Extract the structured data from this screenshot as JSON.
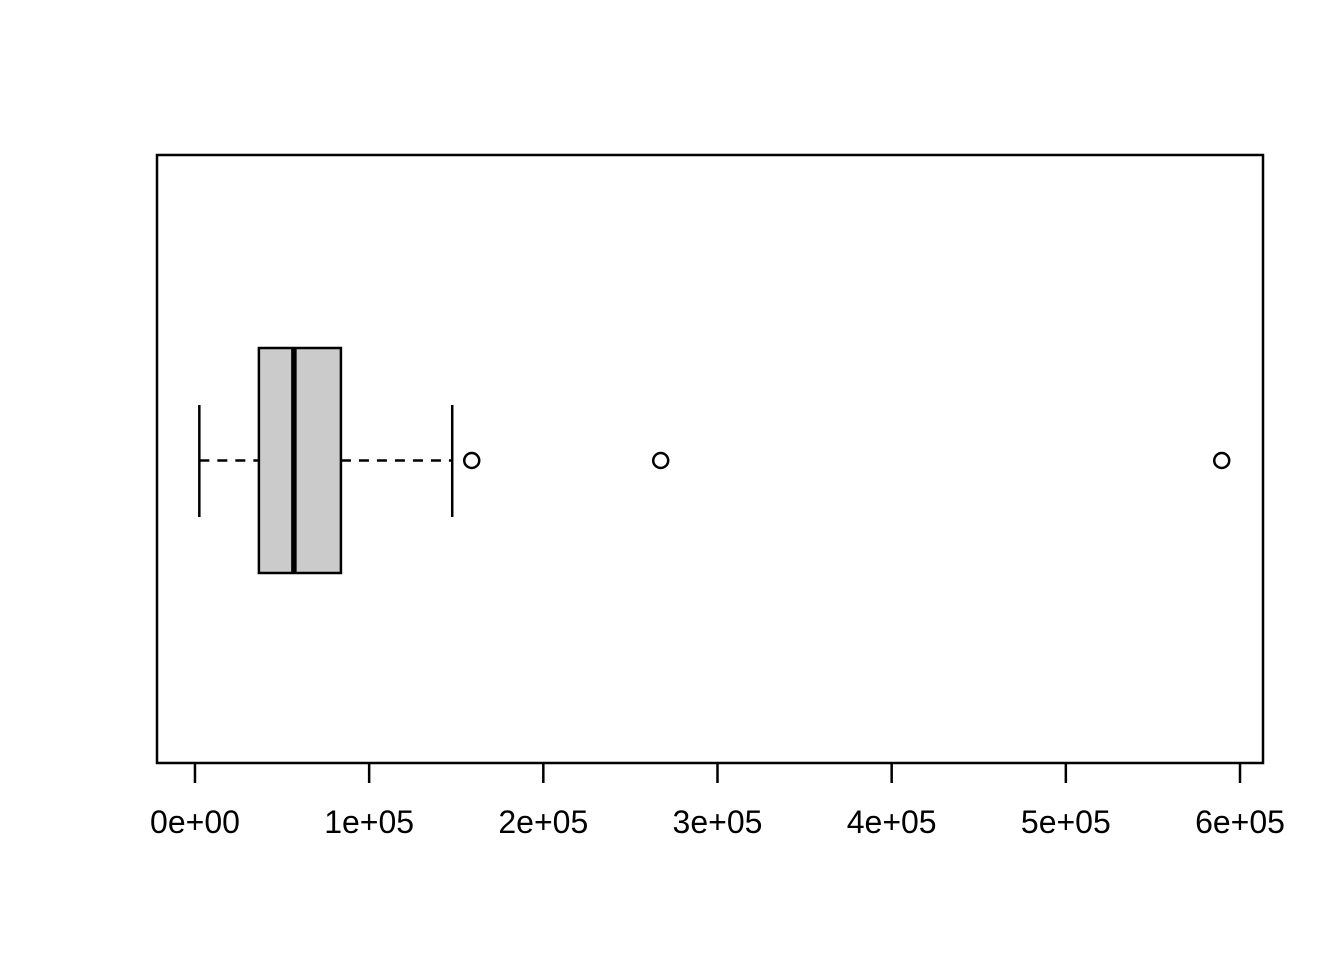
{
  "chart_data": {
    "type": "boxplot",
    "orientation": "horizontal",
    "title": "",
    "xlabel": "",
    "ylabel": "",
    "x_ticks": [
      0,
      100000,
      200000,
      300000,
      400000,
      500000,
      600000
    ],
    "x_tick_labels": [
      "0e+00",
      "1e+05",
      "2e+05",
      "3e+05",
      "4e+05",
      "5e+05",
      "6e+05"
    ],
    "xlim": [
      -21800,
      613200
    ],
    "grid": false,
    "legend": false,
    "series": [
      {
        "name": "boxplot",
        "whisker_low": 2500,
        "q1": 36700,
        "median": 56800,
        "q3": 83800,
        "whisker_high": 147700,
        "outliers": [
          158900,
          267400,
          589500
        ]
      }
    ],
    "style": {
      "box_fill": "#cbcbcb",
      "line_color": "#000000",
      "background": "#ffffff"
    }
  }
}
